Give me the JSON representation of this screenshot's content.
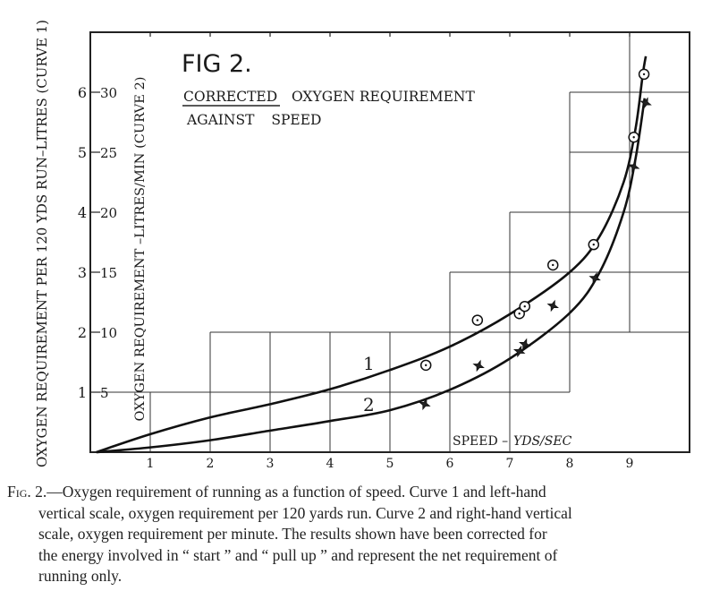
{
  "chart_data": {
    "type": "line",
    "title": "FIG 2.",
    "subtitle_line1_underlined": "CORRECTED",
    "subtitle_line1_rest": "OXYGEN REQUIREMENT",
    "subtitle_line2": "AGAINST SPEED",
    "xlabel_main": "SPEED – ",
    "xlabel_units": "YDS/SEC",
    "ylabel_left": "OXYGEN REQUIREMENT PER 120 YDS RUN–LITRES (CURVE 1)",
    "ylabel_right": "OXYGEN REQUIREMENT –LITRES/MIN (CURVE 2)",
    "xlim": [
      0,
      10
    ],
    "ylim_left": [
      0,
      7
    ],
    "ylim_right": [
      0,
      35
    ],
    "x_ticks": [
      "1",
      "2",
      "3",
      "4",
      "5",
      "6",
      "7",
      "8",
      "9"
    ],
    "y_ticks_left": [
      "1",
      "2",
      "3",
      "4",
      "5",
      "6"
    ],
    "y_ticks_right": [
      "5",
      "10",
      "15",
      "20",
      "25",
      "30"
    ],
    "grid": "staircase",
    "series": [
      {
        "name": "1",
        "axis": "left",
        "marker": "circle-dot",
        "points": [
          {
            "x": 5.6,
            "y": 1.45
          },
          {
            "x": 6.46,
            "y": 2.2
          },
          {
            "x": 7.16,
            "y": 2.31
          },
          {
            "x": 7.25,
            "y": 2.43
          },
          {
            "x": 7.72,
            "y": 3.12
          },
          {
            "x": 8.4,
            "y": 3.46
          },
          {
            "x": 9.07,
            "y": 5.25
          },
          {
            "x": 9.24,
            "y": 6.3
          }
        ],
        "curve": [
          {
            "x": 0.1,
            "y": 0.0
          },
          {
            "x": 1,
            "y": 0.3
          },
          {
            "x": 2,
            "y": 0.58
          },
          {
            "x": 3,
            "y": 0.8
          },
          {
            "x": 4,
            "y": 1.05
          },
          {
            "x": 5,
            "y": 1.37
          },
          {
            "x": 6,
            "y": 1.76
          },
          {
            "x": 7,
            "y": 2.3
          },
          {
            "x": 8,
            "y": 3.0
          },
          {
            "x": 8.5,
            "y": 3.6
          },
          {
            "x": 8.9,
            "y": 4.5
          },
          {
            "x": 9.1,
            "y": 5.4
          },
          {
            "x": 9.22,
            "y": 6.3
          },
          {
            "x": 9.27,
            "y": 6.6
          }
        ]
      },
      {
        "name": "2",
        "axis": "right",
        "marker": "star",
        "points": [
          {
            "x": 5.58,
            "y": 4.0
          },
          {
            "x": 6.48,
            "y": 7.2
          },
          {
            "x": 7.16,
            "y": 8.4
          },
          {
            "x": 7.25,
            "y": 9.0
          },
          {
            "x": 7.72,
            "y": 12.2
          },
          {
            "x": 8.42,
            "y": 14.5
          },
          {
            "x": 9.07,
            "y": 23.8
          },
          {
            "x": 9.27,
            "y": 29.1
          }
        ],
        "curve": [
          {
            "x": 0.1,
            "y": 0.0
          },
          {
            "x": 1,
            "y": 0.4
          },
          {
            "x": 2,
            "y": 1.0
          },
          {
            "x": 3,
            "y": 1.8
          },
          {
            "x": 4,
            "y": 2.6
          },
          {
            "x": 5,
            "y": 3.5
          },
          {
            "x": 6,
            "y": 5.2
          },
          {
            "x": 7,
            "y": 7.8
          },
          {
            "x": 8,
            "y": 11.6
          },
          {
            "x": 8.5,
            "y": 15.0
          },
          {
            "x": 8.9,
            "y": 20.0
          },
          {
            "x": 9.1,
            "y": 24.5
          },
          {
            "x": 9.25,
            "y": 29.5
          }
        ]
      }
    ]
  },
  "caption": {
    "lead": "Fig. 2.",
    "lines": [
      "—Oxygen requirement of running as a function  of speed.  Curve 1 and left-hand",
      "vertical scale, oxygen requirement per 120 yards run.   Curve 2 and right-hand vertical",
      "scale, oxygen requirement  per minute.  The results shown have been corrected for",
      "the energy involved in “ start ” and  “ pull up ” and represent the net requirement of",
      "running only."
    ]
  }
}
